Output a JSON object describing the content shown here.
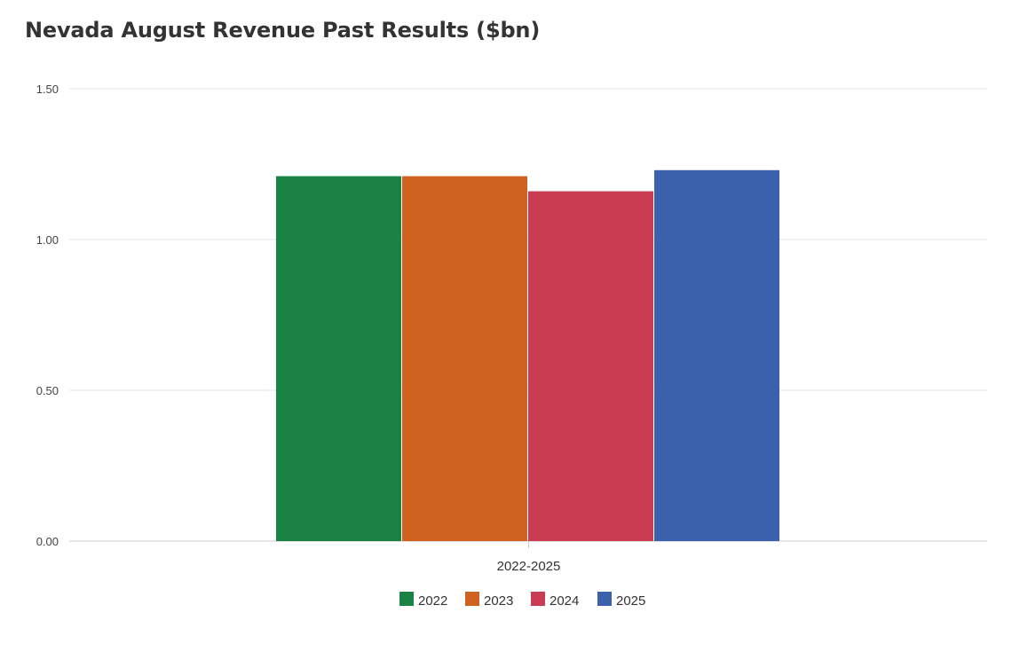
{
  "title": "Nevada August Revenue Past Results ($bn)",
  "colors": {
    "2022": "#1a8245",
    "2023": "#cf6121",
    "2024": "#c93c52",
    "2025": "#3a62ac",
    "grid": "#e3e3e3",
    "axis": "#cccccc"
  },
  "chart_data": {
    "type": "bar",
    "title": "Nevada August Revenue Past Results ($bn)",
    "categories": [
      "2022-2025"
    ],
    "series": [
      {
        "name": "2022",
        "values": [
          1.21
        ]
      },
      {
        "name": "2023",
        "values": [
          1.21
        ]
      },
      {
        "name": "2024",
        "values": [
          1.16
        ]
      },
      {
        "name": "2025",
        "values": [
          1.23
        ]
      }
    ],
    "y_ticks": [
      "0.00",
      "0.50",
      "1.00",
      "1.50"
    ],
    "ylim": [
      0,
      1.5
    ],
    "xlabel": "",
    "ylabel": "",
    "grid": true,
    "legend": "bottom-center"
  }
}
